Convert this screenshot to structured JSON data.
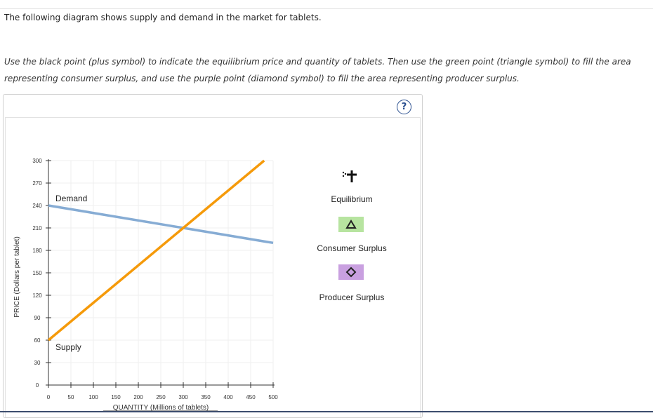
{
  "intro_text": "The following diagram shows supply and demand in the market for tablets.",
  "instructions_text": "Use the black point (plus symbol) to indicate the equilibrium price and quantity of tablets. Then use the green point (triangle symbol) to fill the area representing consumer surplus, and use the purple point (diamond symbol) to fill the area representing producer surplus.",
  "help_label": "?",
  "colors": {
    "demand": "#86acd4",
    "supply": "#f59a0a",
    "consumer_surplus": "#b7e4a0",
    "producer_surplus": "#c9a0e0"
  },
  "legend": {
    "equilibrium_label": "Equilibrium",
    "consumer_surplus_label": "Consumer Surplus",
    "producer_surplus_label": "Producer Surplus",
    "equilibrium_icon": "plus-icon",
    "consumer_surplus_icon": "triangle-icon",
    "producer_surplus_icon": "diamond-icon"
  },
  "chart_data": {
    "type": "line",
    "xlabel": "QUANTITY (Millions of tablets)",
    "ylabel": "PRICE (Dollars per tablet)",
    "xlim": [
      0,
      500
    ],
    "ylim": [
      0,
      300
    ],
    "xticks": [
      0,
      50,
      100,
      150,
      200,
      250,
      300,
      350,
      400,
      450,
      500
    ],
    "yticks": [
      0,
      30,
      60,
      90,
      120,
      150,
      180,
      210,
      240,
      270,
      300
    ],
    "grid": true,
    "series": [
      {
        "name": "Demand",
        "x": [
          0,
          500
        ],
        "y": [
          240,
          190
        ]
      },
      {
        "name": "Supply",
        "x": [
          0,
          480
        ],
        "y": [
          60,
          300
        ]
      }
    ]
  }
}
